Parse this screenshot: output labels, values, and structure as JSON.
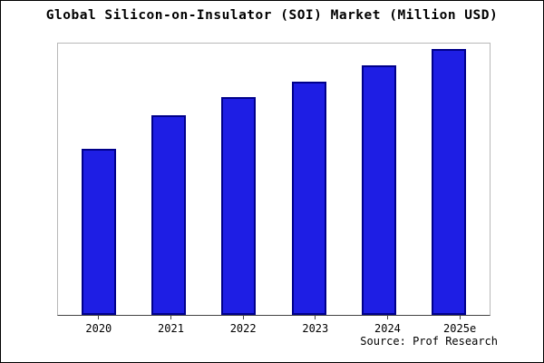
{
  "title": "Global Silicon-on-Insulator (SOI) Market (Million USD)",
  "source": "Source: Prof Research",
  "chart_data": {
    "type": "bar",
    "title": "Global Silicon-on-Insulator (SOI) Market (Million USD)",
    "categories": [
      "2020",
      "2021",
      "2022",
      "2023",
      "2024",
      "2025e"
    ],
    "values": [
      62.5,
      75,
      81.8,
      87.8,
      93.9,
      100
    ],
    "xlabel": "",
    "ylabel": "",
    "ylim": [
      0,
      102
    ],
    "grid": false,
    "legend_position": "none",
    "bar_color": "#1e1ee4",
    "bar_border_color": "#00008b",
    "annotation": "Source: Prof Research"
  }
}
